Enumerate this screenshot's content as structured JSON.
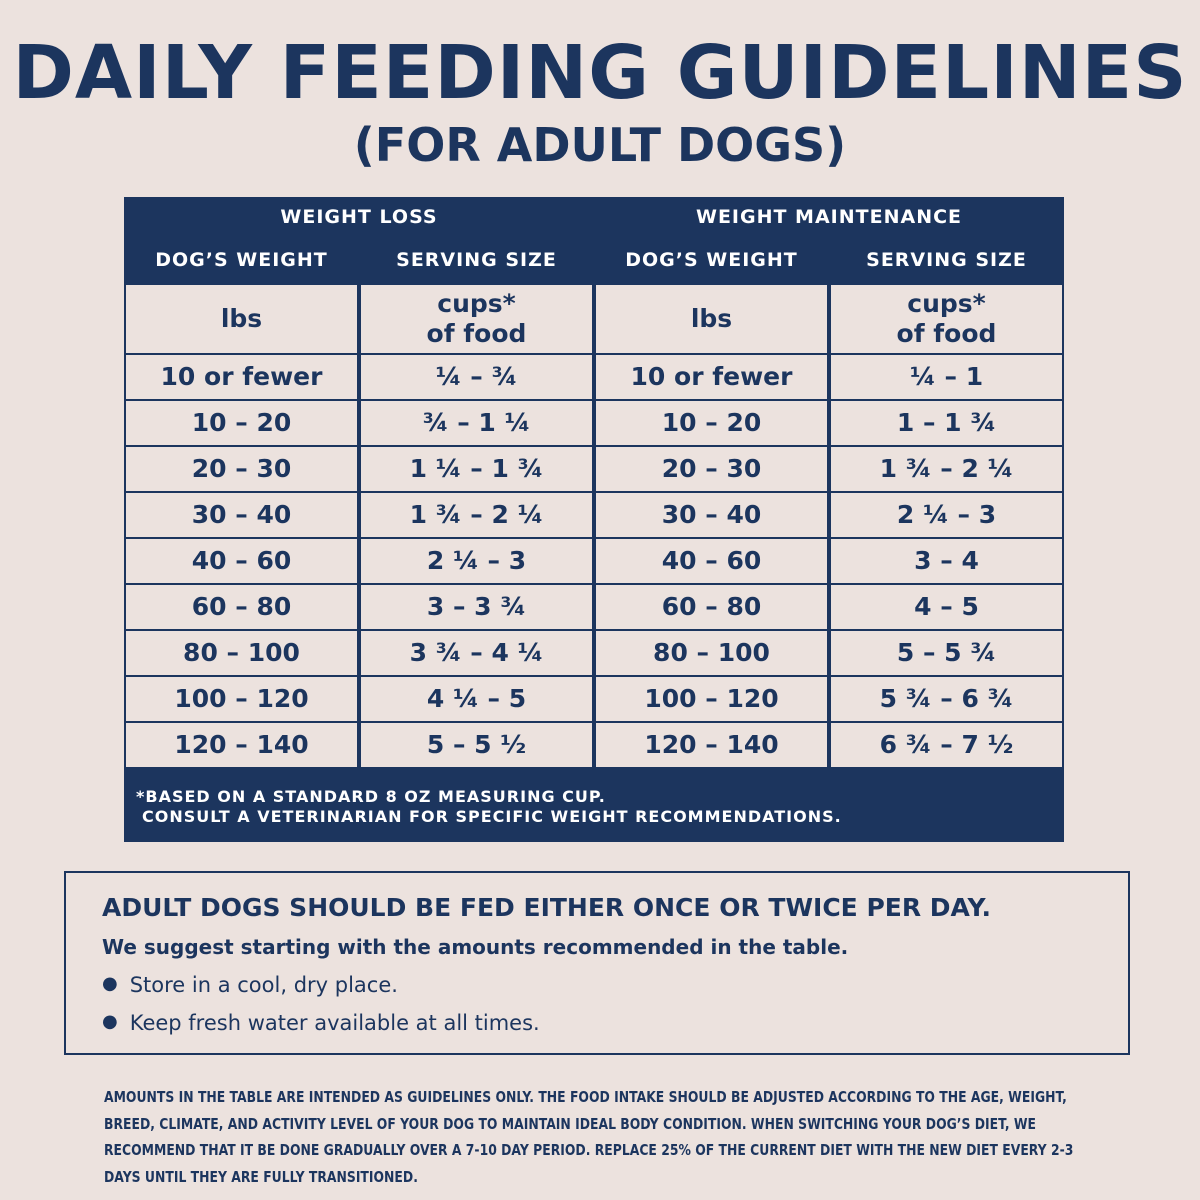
{
  "header": {
    "title": "DAILY FEEDING GUIDELINES",
    "subtitle": "(FOR ADULT DOGS)"
  },
  "table": {
    "groups": [
      "WEIGHT LOSS",
      "WEIGHT MAINTENANCE"
    ],
    "columns": [
      "DOG’S WEIGHT",
      "SERVING SIZE",
      "DOG’S WEIGHT",
      "SERVING SIZE"
    ],
    "units": [
      [
        "lbs"
      ],
      [
        "cups*",
        "of food"
      ],
      [
        "lbs"
      ],
      [
        "cups*",
        "of food"
      ]
    ],
    "rows": [
      [
        "10 or fewer",
        "¼ – ¾",
        "10 or fewer",
        "¼ – 1"
      ],
      [
        "10 – 20",
        "¾ – 1 ¼",
        "10 – 20",
        "1 – 1 ¾"
      ],
      [
        "20 – 30",
        "1 ¼ – 1 ¾",
        "20 – 30",
        "1 ¾ – 2 ¼"
      ],
      [
        "30 – 40",
        "1 ¾ – 2 ¼",
        "30 – 40",
        "2 ¼ – 3"
      ],
      [
        "40 – 60",
        "2 ¼ – 3",
        "40 – 60",
        "3 – 4"
      ],
      [
        "60 – 80",
        "3 – 3 ¾",
        "60 – 80",
        "4 – 5"
      ],
      [
        "80 – 100",
        "3 ¾ – 4 ¼",
        "80 – 100",
        "5 – 5 ¾"
      ],
      [
        "100 – 120",
        "4 ¼ – 5",
        "100 – 120",
        "5 ¾ – 6 ¾"
      ],
      [
        "120 – 140",
        "5 – 5 ½",
        "120 – 140",
        "6 ¾ – 7 ½"
      ]
    ],
    "footnote": [
      "*BASED ON A STANDARD 8 OZ MEASURING CUP.",
      "CONSULT A VETERINARIAN FOR SPECIFIC WEIGHT RECOMMENDATIONS."
    ]
  },
  "info_box": {
    "heading": "ADULT DOGS SHOULD BE FED EITHER ONCE OR TWICE PER DAY.",
    "subheading": "We suggest starting with the amounts recommended in the table.",
    "bullets": [
      "Store in a cool, dry place.",
      "Keep fresh water available at all times."
    ]
  },
  "disclaimer": "AMOUNTS IN THE TABLE ARE INTENDED AS GUIDELINES ONLY. THE FOOD INTAKE SHOULD BE ADJUSTED ACCORDING TO THE AGE, WEIGHT, BREED, CLIMATE, AND ACTIVITY LEVEL OF YOUR DOG TO MAINTAIN IDEAL BODY CONDITION. WHEN SWITCHING YOUR DOG’S DIET, WE RECOMMEND THAT IT BE DONE GRADUALLY OVER A 7-10 DAY PERIOD. REPLACE 25% OF THE CURRENT DIET WITH THE NEW DIET EVERY 2-3 DAYS UNTIL THEY ARE FULLY TRANSITIONED."
}
